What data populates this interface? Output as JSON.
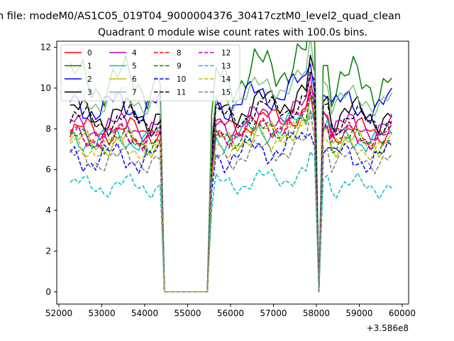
{
  "chart_data": {
    "type": "line",
    "suptitle": "n file: modeM0/AS1C05_019T04_9000004376_30417cztM0_level2_quad_clean",
    "title": "Quadrant 0 module wise count rates with 100.0s bins.",
    "xlabel": "",
    "ylabel": "",
    "x_offset_label": "+3.586e8",
    "xlim": [
      51950,
      60150
    ],
    "ylim": [
      -0.6,
      12.3
    ],
    "x_ticks": [
      52000,
      53000,
      54000,
      55000,
      56000,
      57000,
      58000,
      59000,
      60000
    ],
    "y_ticks": [
      0,
      2,
      4,
      6,
      8,
      10,
      12
    ],
    "legend_position": "upper-left",
    "legend_columns": 4,
    "gap_start": 54385,
    "gap_end": 55485,
    "series": [
      {
        "name": "0",
        "color": "#ff0000",
        "dash": false,
        "base": 7.9,
        "amp": 0.45,
        "phase": 0.0
      },
      {
        "name": "1",
        "color": "#008000",
        "dash": false,
        "base": 10.3,
        "amp": 0.85,
        "phase": 1.1
      },
      {
        "name": "2",
        "color": "#0000ff",
        "dash": false,
        "base": 9.1,
        "amp": 0.6,
        "phase": 2.3
      },
      {
        "name": "3",
        "color": "#000000",
        "dash": false,
        "base": 8.7,
        "amp": 0.6,
        "phase": 0.7
      },
      {
        "name": "4",
        "color": "#bf00bf",
        "dash": false,
        "base": 8.1,
        "amp": 0.5,
        "phase": 1.7
      },
      {
        "name": "5",
        "color": "#00bfbf",
        "dash": false,
        "base": 7.5,
        "amp": 0.45,
        "phase": 2.9
      },
      {
        "name": "6",
        "color": "#bfbf00",
        "dash": false,
        "base": 7.3,
        "amp": 0.45,
        "phase": 0.4
      },
      {
        "name": "7",
        "color": "#7fbf7f",
        "dash": false,
        "base": 9.4,
        "amp": 0.5,
        "phase": 1.4
      },
      {
        "name": "8",
        "color": "#ff0000",
        "dash": true,
        "base": 7.7,
        "amp": 0.45,
        "phase": 2.0
      },
      {
        "name": "9",
        "color": "#008000",
        "dash": true,
        "base": 7.4,
        "amp": 0.45,
        "phase": 0.9
      },
      {
        "name": "10",
        "color": "#0000ff",
        "dash": true,
        "base": 6.6,
        "amp": 0.55,
        "phase": 2.6
      },
      {
        "name": "11",
        "color": "#000000",
        "dash": true,
        "base": 8.4,
        "amp": 0.5,
        "phase": 0.2
      },
      {
        "name": "12",
        "color": "#bf00bf",
        "dash": true,
        "base": 7.6,
        "amp": 0.45,
        "phase": 1.9
      },
      {
        "name": "13",
        "color": "#00bfbf",
        "dash": true,
        "base": 5.2,
        "amp": 0.4,
        "phase": 0.5
      },
      {
        "name": "14",
        "color": "#bfbf00",
        "dash": true,
        "base": 7.1,
        "amp": 0.45,
        "phase": 2.2
      },
      {
        "name": "15",
        "color": "#7f7f7f",
        "dash": true,
        "base": 6.5,
        "amp": 0.45,
        "phase": 1.3
      }
    ]
  }
}
